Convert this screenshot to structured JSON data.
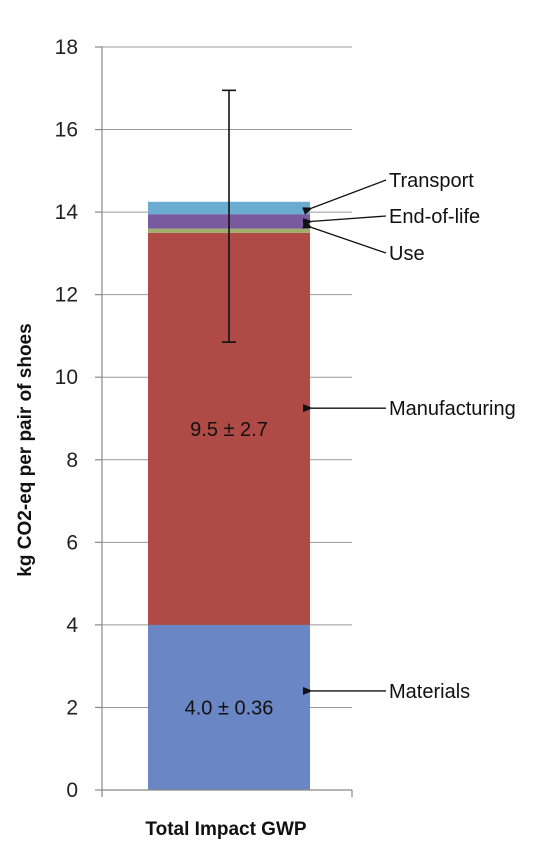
{
  "chart_data": {
    "type": "bar",
    "stacked": true,
    "categories": [
      "Total Impact GWP"
    ],
    "xlabel": "Total Impact GWP",
    "ylabel": "kg CO2-eq per pair of shoes",
    "ylim": [
      0,
      18
    ],
    "yticks": [
      0,
      2,
      4,
      6,
      8,
      10,
      12,
      14,
      16,
      18
    ],
    "grid": true,
    "series": [
      {
        "name": "Materials",
        "values": [
          4.0
        ],
        "label": "4.0 ± 0.36",
        "color": "#6b86c4"
      },
      {
        "name": "Manufacturing",
        "values": [
          9.5
        ],
        "label": "9.5 ± 2.7",
        "color": "#b04a46"
      },
      {
        "name": "Use",
        "values": [
          0.1
        ],
        "color": "#9fae6a"
      },
      {
        "name": "End-of-life",
        "values": [
          0.35
        ],
        "color": "#7a5a9e"
      },
      {
        "name": "Transport",
        "values": [
          0.3
        ],
        "color": "#6aadd0"
      }
    ],
    "error_bar": {
      "center": 13.9,
      "low": 10.85,
      "high": 16.95
    },
    "annotations": [
      {
        "text": "Transport",
        "target_series": "Transport"
      },
      {
        "text": "End-of-life",
        "target_series": "End-of-life"
      },
      {
        "text": "Use",
        "target_series": "Use"
      },
      {
        "text": "Manufacturing",
        "target_series": "Manufacturing"
      },
      {
        "text": "Materials",
        "target_series": "Materials"
      }
    ]
  },
  "colors": {
    "axis": "#888888",
    "grid": "#999999",
    "error": "#111111"
  }
}
